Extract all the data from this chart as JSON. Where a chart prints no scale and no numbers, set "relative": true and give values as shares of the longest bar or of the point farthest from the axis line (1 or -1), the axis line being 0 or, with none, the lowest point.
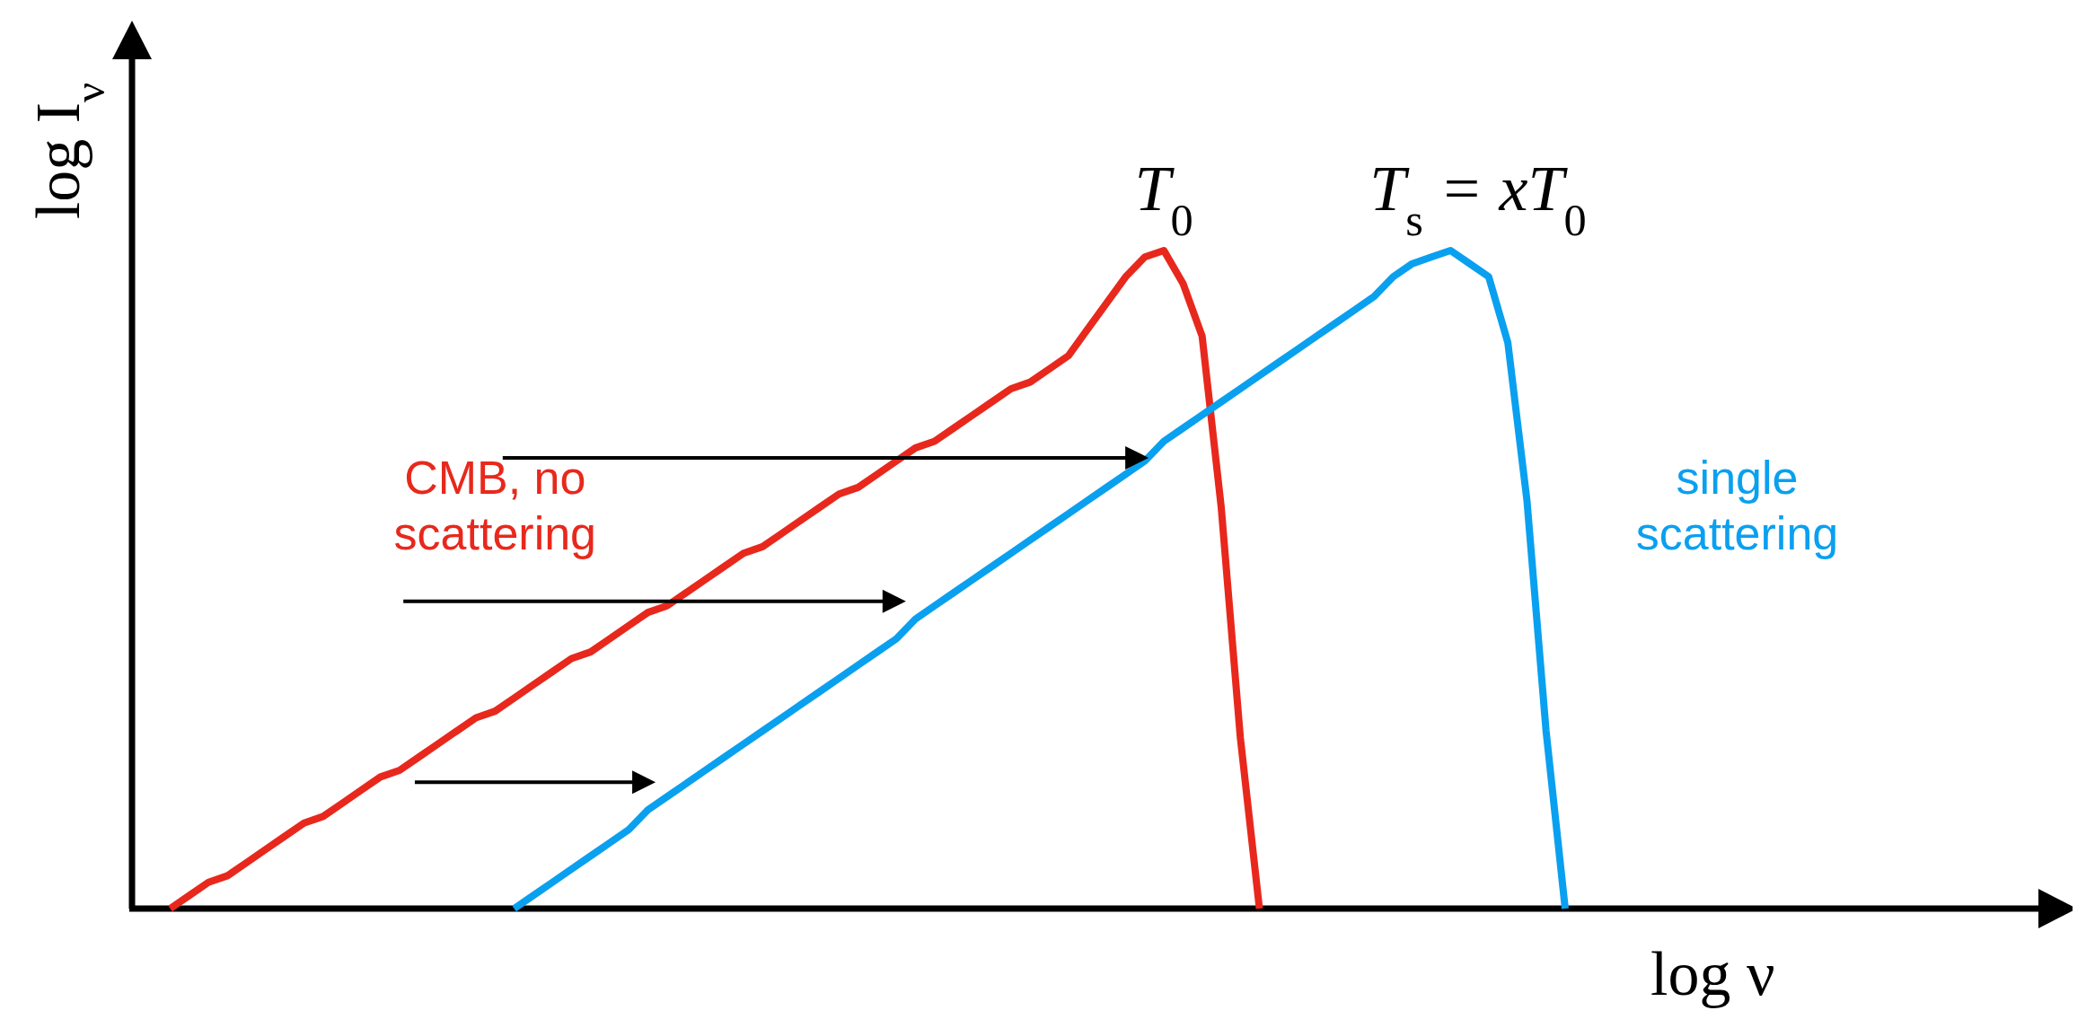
{
  "chart_data": {
    "type": "line",
    "relative": true,
    "xlabel": "log ν",
    "ylabel": "log I$_{ν}$",
    "line_style": "solid",
    "categories": [
      null,
      null,
      null,
      null,
      null,
      null,
      null,
      null,
      null,
      null,
      null,
      null,
      null,
      null,
      null,
      null,
      null,
      null,
      null,
      null,
      null,
      null,
      null,
      null,
      null,
      null,
      null,
      null,
      null,
      null,
      null,
      null,
      null,
      null,
      null,
      null,
      null,
      null,
      null,
      null,
      null,
      null,
      null,
      null,
      null,
      null,
      null,
      null,
      null,
      null,
      null,
      null,
      null,
      null,
      null,
      null,
      null,
      null,
      null,
      null,
      null,
      null,
      null,
      null,
      null,
      null,
      null,
      null,
      null,
      null,
      null,
      null,
      null,
      null,
      null,
      null,
      null,
      null,
      null,
      null,
      null,
      null,
      null,
      null,
      null,
      null,
      null,
      null,
      null,
      null,
      null,
      null,
      null,
      null,
      null,
      null,
      null,
      null,
      null,
      null
    ],
    "series": [
      {
        "name": "CMB, no scattering",
        "color": "#e8281c",
        "values": [
          null,
          null,
          0,
          0.02,
          0.04,
          0.05,
          0.07,
          0.09,
          0.11,
          0.13,
          0.14,
          0.16,
          0.18,
          0.2,
          0.21,
          0.23,
          0.25,
          0.27,
          0.29,
          0.3,
          0.32,
          0.34,
          0.36,
          0.38,
          0.39,
          0.41,
          0.43,
          0.45,
          0.46,
          0.48,
          0.5,
          0.52,
          0.54,
          0.55,
          0.57,
          0.59,
          0.61,
          0.63,
          0.64,
          0.66,
          0.68,
          0.7,
          0.71,
          0.73,
          0.75,
          0.77,
          0.79,
          0.8,
          0.82,
          0.84,
          0.88,
          0.92,
          0.96,
          0.99,
          1,
          0.95,
          0.87,
          0.61,
          0.26,
          0,
          null,
          null,
          null,
          null,
          null,
          null,
          null,
          null,
          null,
          null,
          null,
          null,
          null,
          null,
          null,
          null,
          null,
          null,
          null,
          null,
          null,
          null,
          null,
          null,
          null,
          null,
          null,
          null,
          null,
          null,
          null,
          null,
          null,
          null,
          null,
          null,
          null,
          null,
          null,
          null
        ]
      },
      {
        "name": "single scattering",
        "color": "#0aa0f0",
        "values": [
          null,
          null,
          null,
          null,
          null,
          null,
          null,
          null,
          null,
          null,
          null,
          null,
          null,
          null,
          null,
          null,
          null,
          null,
          null,
          null,
          0,
          0.02,
          0.04,
          0.06,
          0.08,
          0.1,
          0.12,
          0.15,
          0.17,
          0.19,
          0.21,
          0.23,
          0.25,
          0.27,
          0.29,
          0.31,
          0.33,
          0.35,
          0.37,
          0.39,
          0.41,
          0.44,
          0.46,
          0.48,
          0.5,
          0.52,
          0.54,
          0.56,
          0.58,
          0.6,
          0.62,
          0.64,
          0.66,
          0.68,
          0.71,
          0.73,
          0.75,
          0.77,
          0.79,
          0.81,
          0.83,
          0.85,
          0.87,
          0.89,
          0.91,
          0.93,
          0.96,
          0.98,
          0.99,
          1,
          0.98,
          0.96,
          0.86,
          0.62,
          0.27,
          0,
          null,
          null,
          null,
          null,
          null,
          null,
          null,
          null,
          null,
          null,
          null,
          null,
          null,
          null,
          null,
          null,
          null,
          null,
          null,
          null,
          null,
          null,
          null,
          null
        ]
      }
    ],
    "annotations": [
      "T$_{0}$",
      "T$_{s}$ = xT$_{0}$"
    ]
  }
}
